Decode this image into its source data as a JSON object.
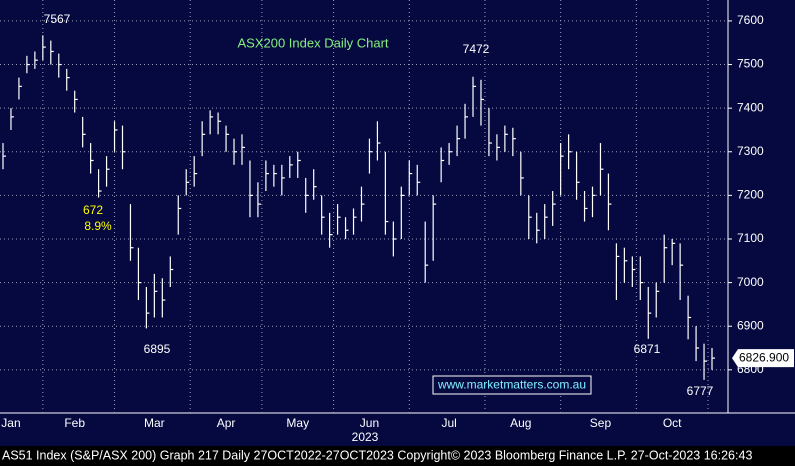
{
  "chart_data": {
    "type": "ohlc",
    "title": "ASX200 Index Daily Chart",
    "color": "#ffffff",
    "ylim": [
      6701,
      7648
    ],
    "yticks": [
      6800,
      6900,
      7000,
      7100,
      7200,
      7300,
      7400,
      7500,
      7600
    ],
    "grid": true,
    "categories": [
      null,
      "Jan",
      null,
      null,
      null,
      null,
      null,
      null,
      null,
      "Feb",
      null,
      null,
      null,
      null,
      null,
      null,
      null,
      null,
      null,
      "Mar",
      null,
      null,
      null,
      null,
      null,
      null,
      null,
      null,
      "Apr",
      null,
      null,
      null,
      null,
      null,
      null,
      null,
      null,
      "May",
      null,
      null,
      null,
      null,
      null,
      null,
      null,
      null,
      "Jun",
      null,
      null,
      null,
      null,
      null,
      null,
      null,
      null,
      null,
      "Jul",
      null,
      null,
      null,
      null,
      null,
      null,
      null,
      null,
      "Aug",
      null,
      null,
      null,
      null,
      null,
      null,
      null,
      null,
      null,
      "Sep",
      null,
      null,
      null,
      null,
      null,
      null,
      null,
      null,
      "Oct",
      null,
      null,
      null,
      null,
      null
    ],
    "x_group_label": "2023",
    "high": [
      7320,
      7400,
      7470,
      7520,
      7530,
      7567,
      7555,
      7525,
      7490,
      7440,
      7380,
      7320,
      7260,
      7290,
      7370,
      7360,
      7180,
      7080,
      6990,
      7020,
      7010,
      7060,
      7200,
      7260,
      7290,
      7370,
      7395,
      7390,
      7360,
      7330,
      7340,
      7280,
      7230,
      7280,
      7270,
      7270,
      7290,
      7300,
      7240,
      7260,
      7200,
      7160,
      7180,
      7150,
      7170,
      7220,
      7330,
      7370,
      7300,
      7140,
      7220,
      7280,
      7270,
      7140,
      7200,
      7310,
      7320,
      7360,
      7410,
      7472,
      7465,
      7400,
      7340,
      7360,
      7355,
      7300,
      7200,
      7160,
      7180,
      7210,
      7320,
      7340,
      7300,
      7210,
      7220,
      7320,
      7250,
      7090,
      7080,
      7060,
      7060,
      6990,
      7000,
      7110,
      7100,
      7090,
      6970,
      6900,
      6860,
      6850
    ],
    "low": [
      7260,
      7350,
      7420,
      7480,
      7490,
      7510,
      7500,
      7470,
      7440,
      7390,
      7310,
      7250,
      7195,
      7220,
      7300,
      7260,
      7050,
      6960,
      6895,
      6920,
      6920,
      6990,
      7110,
      7200,
      7220,
      7290,
      7340,
      7340,
      7300,
      7270,
      7270,
      7150,
      7150,
      7210,
      7220,
      7200,
      7240,
      7240,
      7160,
      7190,
      7110,
      7080,
      7110,
      7100,
      7110,
      7140,
      7250,
      7280,
      7110,
      7060,
      7100,
      7200,
      7200,
      7000,
      7050,
      7230,
      7270,
      7290,
      7330,
      7380,
      7360,
      7290,
      7280,
      7300,
      7290,
      7200,
      7100,
      7090,
      7100,
      7130,
      7200,
      7260,
      7190,
      7140,
      7150,
      7200,
      7120,
      6960,
      7000,
      6990,
      6960,
      6871,
      6920,
      7000,
      7040,
      6960,
      6870,
      6820,
      6777,
      6800
    ],
    "close": [
      7290,
      7380,
      7450,
      7500,
      7510,
      7540,
      7530,
      7500,
      7470,
      7420,
      7340,
      7280,
      7210,
      7260,
      7350,
      7300,
      7080,
      7000,
      6930,
      6980,
      6960,
      7030,
      7170,
      7230,
      7250,
      7340,
      7380,
      7370,
      7340,
      7300,
      7310,
      7200,
      7180,
      7250,
      7250,
      7240,
      7270,
      7280,
      7200,
      7220,
      7150,
      7110,
      7150,
      7120,
      7150,
      7180,
      7300,
      7320,
      7140,
      7100,
      7200,
      7250,
      7230,
      7040,
      7180,
      7280,
      7300,
      7330,
      7380,
      7450,
      7420,
      7320,
      7310,
      7340,
      7330,
      7240,
      7150,
      7120,
      7150,
      7180,
      7290,
      7300,
      7230,
      7170,
      7200,
      7260,
      7180,
      7060,
      7050,
      7030,
      7000,
      6930,
      6980,
      7080,
      7090,
      7040,
      6920,
      6850,
      6820,
      6826.9
    ],
    "last_value": {
      "value": 6826.9,
      "label": "6826.900"
    },
    "annotations": [
      "7567",
      "672",
      "8.9%",
      "6895",
      "7472",
      "6871",
      "6777"
    ],
    "watermark": "www.marketmatters.com.au",
    "footer": "AS51 Index (S&P/ASX 200) Graph 217  Daily 27OCT2022-27OCT2023 Copyright© 2023 Bloomberg Finance L.P.  27-Oct-2023 16:26:43"
  }
}
